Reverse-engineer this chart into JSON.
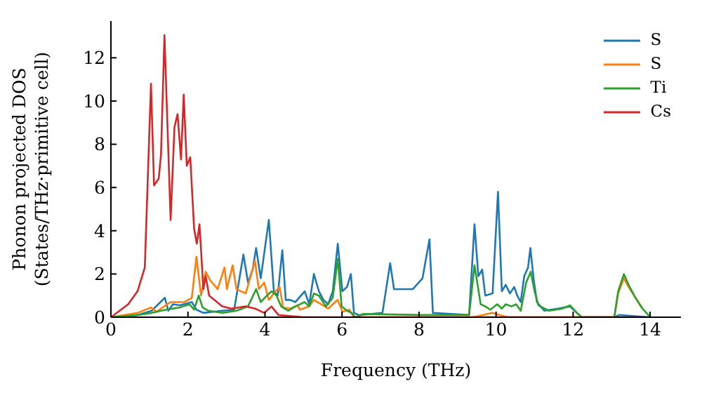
{
  "chart_data": {
    "type": "line",
    "xlabel": "Frequency (THz)",
    "ylabel": "Phonon projected DOS\n(States/THz·primitive cell)",
    "xlim": [
      0,
      14.8
    ],
    "ylim": [
      0,
      13.7
    ],
    "xticks": [
      0,
      2,
      4,
      6,
      8,
      10,
      12,
      14
    ],
    "yticks": [
      0,
      2,
      4,
      6,
      8,
      10,
      12
    ],
    "legend": "top right",
    "marker": "none",
    "line_style": "solid",
    "series": [
      {
        "name": "S",
        "color": "#1f77b4",
        "x": [
          0,
          0.69,
          1.06,
          1.4,
          1.49,
          1.61,
          1.79,
          2.1,
          2.22,
          2.4,
          2.89,
          3.2,
          3.44,
          3.56,
          3.68,
          3.77,
          3.89,
          4.1,
          4.23,
          4.33,
          4.45,
          4.54,
          4.66,
          4.79,
          5.03,
          5.15,
          5.27,
          5.4,
          5.52,
          5.64,
          5.76,
          5.89,
          6.01,
          6.13,
          6.23,
          6.31,
          6.44,
          7.05,
          7.25,
          7.35,
          7.6,
          7.84,
          8.09,
          8.27,
          8.36,
          9.3,
          9.44,
          9.54,
          9.64,
          9.72,
          9.91,
          10.05,
          10.15,
          10.25,
          10.36,
          10.47,
          10.55,
          10.64,
          10.73,
          10.83,
          10.89,
          10.98,
          11.06,
          11.25,
          11.61,
          11.92,
          12.1,
          12.22,
          13.07,
          13.19,
          14.0
        ],
        "values": [
          0,
          0.1,
          0.3,
          0.9,
          0.3,
          0.6,
          0.55,
          0.7,
          0.35,
          0.2,
          0.3,
          0.35,
          2.9,
          1.6,
          2.2,
          3.2,
          1.8,
          4.5,
          1.2,
          1.0,
          3.1,
          0.8,
          0.8,
          0.7,
          1.2,
          0.6,
          2.0,
          1.2,
          0.8,
          0.6,
          1.2,
          3.4,
          1.2,
          1.4,
          2.0,
          0.2,
          0.1,
          0.2,
          2.5,
          1.3,
          1.3,
          1.3,
          1.8,
          3.6,
          0.2,
          0.1,
          4.3,
          1.9,
          2.2,
          1.0,
          1.1,
          5.8,
          1.2,
          1.5,
          1.1,
          1.4,
          1.0,
          0.7,
          1.9,
          2.3,
          3.2,
          1.7,
          0.7,
          0.3,
          0.4,
          0.5,
          0.2,
          0,
          0,
          0.1,
          0
        ]
      },
      {
        "name": "S",
        "color": "#ff7f0e",
        "x": [
          0,
          0.69,
          1.04,
          1.18,
          1.55,
          1.91,
          2.1,
          2.22,
          2.34,
          2.46,
          2.58,
          2.77,
          2.95,
          3.01,
          3.16,
          3.26,
          3.5,
          3.74,
          3.84,
          3.98,
          4.1,
          4.23,
          4.38,
          4.47,
          4.66,
          4.84,
          4.91,
          5.15,
          5.27,
          5.46,
          5.64,
          5.82,
          5.89,
          6.01,
          6.19,
          6.31,
          9.4,
          9.9,
          10.1,
          10.3,
          13.07,
          13.17,
          13.32,
          13.44,
          13.62,
          13.8
        ],
        "values": [
          0,
          0.2,
          0.45,
          0.25,
          0.7,
          0.7,
          0.9,
          2.8,
          1.0,
          2.1,
          1.7,
          1.3,
          2.3,
          1.3,
          2.4,
          1.3,
          1.1,
          2.6,
          1.3,
          1.6,
          0.8,
          1.1,
          1.4,
          0.45,
          0.4,
          0.55,
          0.35,
          0.5,
          0.8,
          0.6,
          0.4,
          0.7,
          0.8,
          0.25,
          0.35,
          0,
          0,
          0.2,
          0.1,
          0,
          0,
          1.1,
          1.8,
          1.4,
          0.9,
          0.4
        ]
      },
      {
        "name": "Ti",
        "color": "#2ca02c",
        "x": [
          0,
          0.69,
          1.06,
          1.43,
          1.79,
          2.04,
          2.16,
          2.28,
          2.38,
          2.53,
          2.89,
          3.26,
          3.56,
          3.77,
          3.89,
          4.05,
          4.17,
          4.3,
          4.42,
          4.6,
          4.79,
          5.03,
          5.15,
          5.27,
          5.4,
          5.58,
          5.76,
          5.89,
          5.99,
          6.13,
          6.25,
          6.35,
          6.55,
          8.09,
          9.3,
          9.44,
          9.6,
          9.72,
          9.85,
          10.03,
          10.15,
          10.25,
          10.4,
          10.52,
          10.64,
          10.78,
          10.9,
          11.0,
          11.1,
          11.37,
          11.73,
          11.92,
          12.1,
          12.22,
          13.07,
          13.17,
          13.32,
          13.44,
          13.62,
          13.8,
          13.98,
          14.0
        ],
        "values": [
          0,
          0.1,
          0.2,
          0.35,
          0.45,
          0.6,
          0.35,
          1.0,
          0.45,
          0.3,
          0.2,
          0.3,
          0.5,
          1.3,
          0.7,
          1.0,
          1.2,
          1.0,
          0.5,
          0.3,
          0.5,
          0.7,
          0.5,
          1.1,
          1.0,
          0.5,
          0.9,
          2.7,
          0.5,
          0.3,
          0.2,
          0,
          0.15,
          0.1,
          0.1,
          2.4,
          0.6,
          0.5,
          0.35,
          0.6,
          0.4,
          0.6,
          0.5,
          0.6,
          0.3,
          1.6,
          2.1,
          1.2,
          0.55,
          0.3,
          0.4,
          0.55,
          0.2,
          0,
          0,
          1.2,
          2.0,
          1.5,
          0.9,
          0.4,
          0.05,
          0
        ]
      },
      {
        "name": "Cs",
        "color": "#d62728",
        "x": [
          0,
          0.45,
          0.69,
          0.88,
          1.04,
          1.12,
          1.24,
          1.3,
          1.39,
          1.55,
          1.65,
          1.73,
          1.82,
          1.89,
          1.97,
          2.06,
          2.16,
          2.23,
          2.3,
          2.4,
          2.46,
          2.55,
          2.89,
          3.13,
          3.5,
          3.74,
          3.98,
          4.17,
          4.35,
          5.0,
          14.0
        ],
        "values": [
          0,
          0.6,
          1.2,
          2.3,
          10.8,
          6.1,
          6.4,
          7.5,
          13.05,
          4.5,
          8.8,
          9.4,
          7.3,
          10.3,
          7.0,
          7.4,
          4.1,
          3.4,
          4.3,
          1.3,
          1.9,
          1.0,
          0.5,
          0.4,
          0.5,
          0.4,
          0.2,
          0.5,
          0.1,
          0,
          0
        ]
      }
    ]
  }
}
